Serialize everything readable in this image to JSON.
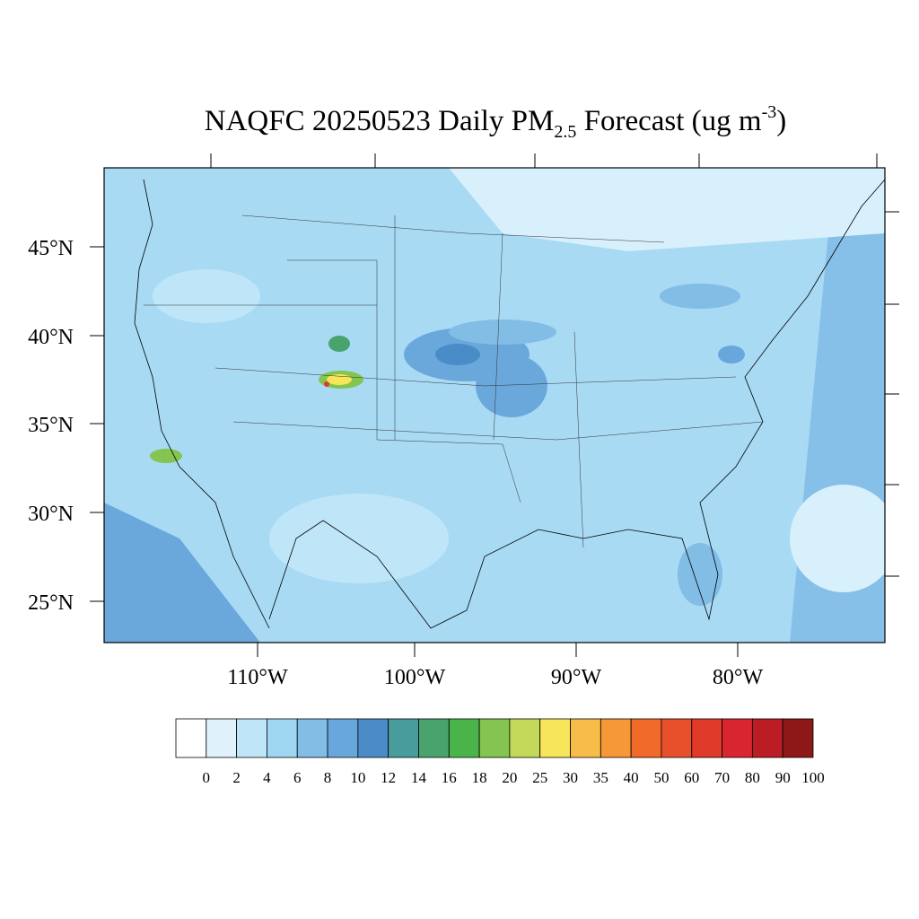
{
  "title": {
    "main": "NAQFC 20250523 Daily PM",
    "sub": "2.5",
    "rest": " Forecast (ug m",
    "sup": "-3",
    "end": ")"
  },
  "lat_labels": [
    "45°N",
    "40°N",
    "35°N",
    "30°N",
    "25°N"
  ],
  "lon_labels": [
    "110°W",
    "100°W",
    "90°W",
    "80°W"
  ],
  "colorbar": {
    "levels": [
      0,
      2,
      4,
      6,
      8,
      10,
      12,
      14,
      16,
      18,
      20,
      25,
      30,
      35,
      40,
      50,
      60,
      70,
      80,
      90,
      100
    ],
    "colors": [
      "#ffffff",
      "#dff2fb",
      "#bfe6f8",
      "#9fd6f2",
      "#82bde6",
      "#68a7dc",
      "#4a8cc8",
      "#489c9c",
      "#48a46c",
      "#4ab44a",
      "#84c450",
      "#c4d85a",
      "#f8e65a",
      "#f8bc48",
      "#f69838",
      "#f26a2a",
      "#e8502c",
      "#e03a2a",
      "#d82530",
      "#bc1c24",
      "#8e1818"
    ]
  }
}
